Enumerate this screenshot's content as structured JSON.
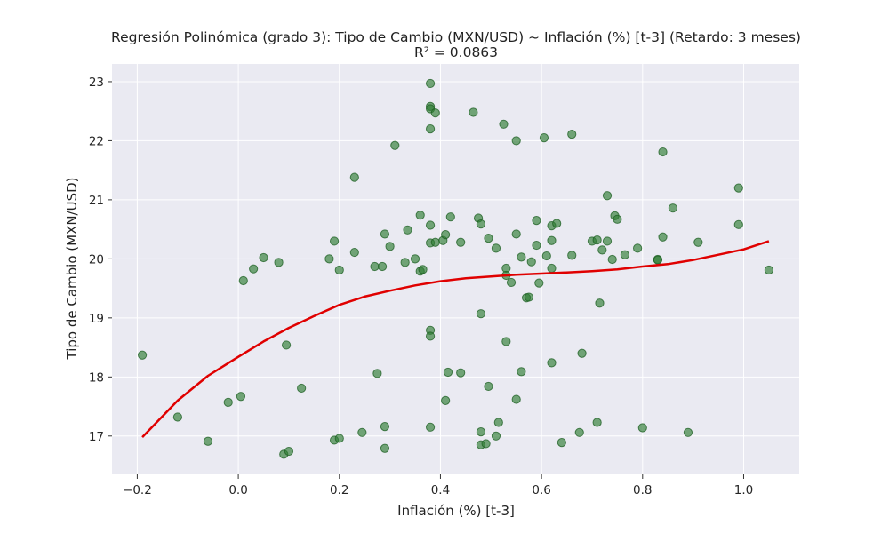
{
  "chart_data": {
    "type": "scatter",
    "title": "Regresión Polinómica (grado 3): Tipo de Cambio (MXN/USD) ~ Inflación (%) [t-3] (Retardo: 3 meses)",
    "subtitle": "R² = 0.0863",
    "xlabel": "Inflación (%) [t-3]",
    "ylabel": "Tipo de Cambio (MXN/USD)",
    "xlim": [
      -0.25,
      1.11
    ],
    "ylim": [
      16.35,
      23.3
    ],
    "xticks": [
      -0.2,
      0.0,
      0.2,
      0.4,
      0.6,
      0.8,
      1.0
    ],
    "xtick_labels": [
      "−0.2",
      "0.0",
      "0.2",
      "0.4",
      "0.6",
      "0.8",
      "1.0"
    ],
    "yticks": [
      17,
      18,
      19,
      20,
      21,
      22,
      23
    ],
    "ytick_labels": [
      "17",
      "18",
      "19",
      "20",
      "21",
      "22",
      "23"
    ],
    "grid": true,
    "colors": {
      "points": "#2e7d32",
      "fit": "#e00000",
      "background": "#eaeaf2"
    },
    "points": [
      [
        -0.19,
        18.37
      ],
      [
        -0.12,
        17.32
      ],
      [
        -0.06,
        16.91
      ],
      [
        -0.02,
        17.57
      ],
      [
        0.01,
        19.63
      ],
      [
        0.005,
        17.67
      ],
      [
        0.03,
        19.83
      ],
      [
        0.05,
        20.02
      ],
      [
        0.08,
        19.94
      ],
      [
        0.09,
        16.69
      ],
      [
        0.095,
        18.54
      ],
      [
        0.1,
        16.74
      ],
      [
        0.125,
        17.81
      ],
      [
        0.18,
        20.0
      ],
      [
        0.19,
        20.3
      ],
      [
        0.19,
        16.93
      ],
      [
        0.2,
        16.96
      ],
      [
        0.2,
        19.81
      ],
      [
        0.23,
        21.38
      ],
      [
        0.23,
        20.11
      ],
      [
        0.245,
        17.06
      ],
      [
        0.27,
        19.87
      ],
      [
        0.275,
        18.06
      ],
      [
        0.285,
        19.87
      ],
      [
        0.29,
        20.42
      ],
      [
        0.29,
        17.16
      ],
      [
        0.29,
        16.79
      ],
      [
        0.3,
        20.21
      ],
      [
        0.31,
        21.92
      ],
      [
        0.33,
        19.94
      ],
      [
        0.335,
        20.49
      ],
      [
        0.35,
        20.0
      ],
      [
        0.36,
        20.74
      ],
      [
        0.36,
        19.79
      ],
      [
        0.365,
        19.82
      ],
      [
        0.38,
        22.97
      ],
      [
        0.38,
        22.58
      ],
      [
        0.38,
        22.54
      ],
      [
        0.38,
        22.2
      ],
      [
        0.38,
        20.57
      ],
      [
        0.38,
        20.27
      ],
      [
        0.38,
        18.79
      ],
      [
        0.38,
        18.69
      ],
      [
        0.38,
        17.15
      ],
      [
        0.39,
        22.47
      ],
      [
        0.39,
        20.28
      ],
      [
        0.405,
        20.31
      ],
      [
        0.41,
        20.41
      ],
      [
        0.41,
        17.6
      ],
      [
        0.415,
        18.08
      ],
      [
        0.42,
        20.71
      ],
      [
        0.44,
        20.28
      ],
      [
        0.44,
        18.07
      ],
      [
        0.465,
        22.48
      ],
      [
        0.475,
        20.69
      ],
      [
        0.48,
        20.59
      ],
      [
        0.48,
        19.07
      ],
      [
        0.48,
        17.07
      ],
      [
        0.48,
        16.85
      ],
      [
        0.49,
        16.87
      ],
      [
        0.495,
        20.35
      ],
      [
        0.495,
        17.84
      ],
      [
        0.51,
        20.18
      ],
      [
        0.51,
        17.0
      ],
      [
        0.515,
        17.23
      ],
      [
        0.525,
        22.28
      ],
      [
        0.53,
        19.84
      ],
      [
        0.53,
        19.72
      ],
      [
        0.53,
        18.6
      ],
      [
        0.54,
        19.6
      ],
      [
        0.55,
        22.0
      ],
      [
        0.55,
        20.42
      ],
      [
        0.55,
        17.62
      ],
      [
        0.56,
        20.03
      ],
      [
        0.56,
        18.09
      ],
      [
        0.57,
        19.34
      ],
      [
        0.575,
        19.35
      ],
      [
        0.58,
        19.95
      ],
      [
        0.59,
        20.65
      ],
      [
        0.59,
        20.23
      ],
      [
        0.595,
        19.59
      ],
      [
        0.605,
        22.05
      ],
      [
        0.61,
        20.05
      ],
      [
        0.62,
        20.56
      ],
      [
        0.62,
        20.31
      ],
      [
        0.62,
        19.84
      ],
      [
        0.62,
        18.24
      ],
      [
        0.63,
        20.6
      ],
      [
        0.64,
        16.89
      ],
      [
        0.66,
        22.11
      ],
      [
        0.66,
        20.06
      ],
      [
        0.675,
        17.06
      ],
      [
        0.68,
        18.4
      ],
      [
        0.7,
        20.3
      ],
      [
        0.71,
        20.32
      ],
      [
        0.71,
        17.23
      ],
      [
        0.715,
        19.25
      ],
      [
        0.72,
        20.15
      ],
      [
        0.73,
        21.07
      ],
      [
        0.73,
        20.3
      ],
      [
        0.74,
        19.99
      ],
      [
        0.745,
        20.73
      ],
      [
        0.75,
        20.67
      ],
      [
        0.765,
        20.07
      ],
      [
        0.79,
        20.18
      ],
      [
        0.8,
        17.14
      ],
      [
        0.83,
        19.99
      ],
      [
        0.83,
        19.98
      ],
      [
        0.84,
        21.81
      ],
      [
        0.84,
        20.37
      ],
      [
        0.86,
        20.86
      ],
      [
        0.89,
        17.06
      ],
      [
        0.91,
        20.28
      ],
      [
        0.99,
        21.2
      ],
      [
        0.99,
        20.58
      ],
      [
        1.05,
        19.81
      ]
    ],
    "fit_line": [
      [
        -0.19,
        16.98
      ],
      [
        -0.12,
        17.6
      ],
      [
        -0.06,
        18.02
      ],
      [
        0.0,
        18.34
      ],
      [
        0.05,
        18.6
      ],
      [
        0.1,
        18.83
      ],
      [
        0.15,
        19.03
      ],
      [
        0.2,
        19.22
      ],
      [
        0.25,
        19.36
      ],
      [
        0.3,
        19.46
      ],
      [
        0.35,
        19.55
      ],
      [
        0.4,
        19.62
      ],
      [
        0.45,
        19.67
      ],
      [
        0.5,
        19.7
      ],
      [
        0.55,
        19.73
      ],
      [
        0.6,
        19.75
      ],
      [
        0.65,
        19.77
      ],
      [
        0.7,
        19.79
      ],
      [
        0.75,
        19.82
      ],
      [
        0.8,
        19.87
      ],
      [
        0.85,
        19.91
      ],
      [
        0.9,
        19.98
      ],
      [
        0.95,
        20.07
      ],
      [
        1.0,
        20.16
      ],
      [
        1.05,
        20.3
      ]
    ]
  }
}
